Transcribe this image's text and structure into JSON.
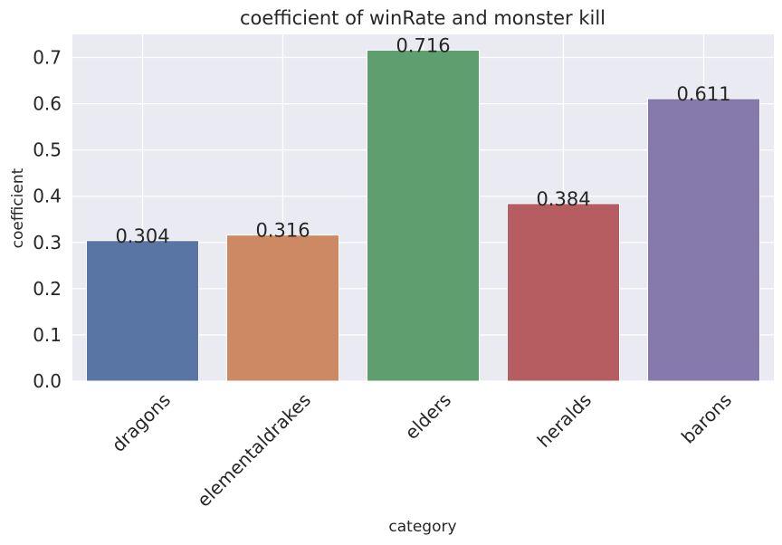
{
  "chart_data": {
    "type": "bar",
    "title": "coefficient of winRate and monster kill",
    "xlabel": "category",
    "ylabel": "coefficient",
    "categories": [
      "dragons",
      "elementaldrakes",
      "elders",
      "heralds",
      "barons"
    ],
    "values": [
      0.304,
      0.316,
      0.716,
      0.384,
      0.611
    ],
    "data_labels": [
      "0.304",
      "0.316",
      "0.716",
      "0.384",
      "0.611"
    ],
    "colors": [
      "#5875a4",
      "#cc8963",
      "#5f9e6e",
      "#b55d60",
      "#857aab"
    ],
    "ylim": [
      0,
      0.75
    ],
    "yticks": [
      0.0,
      0.1,
      0.2,
      0.3,
      0.4,
      0.5,
      0.6,
      0.7
    ],
    "ytick_labels": [
      "0.0",
      "0.1",
      "0.2",
      "0.3",
      "0.4",
      "0.5",
      "0.6",
      "0.7"
    ],
    "grid": true,
    "background": "#eaeaf2",
    "grid_color": "#ffffff"
  }
}
